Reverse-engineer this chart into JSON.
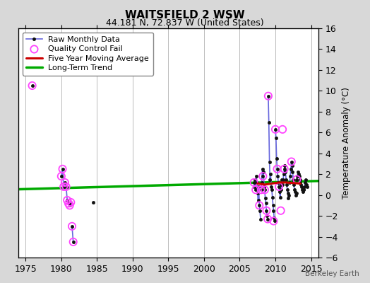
{
  "title": "WAITSFIELD 2 WSW",
  "subtitle": "44.181 N, 72.837 W (United States)",
  "ylabel": "Temperature Anomaly (°C)",
  "watermark": "Berkeley Earth",
  "xlim": [
    1974,
    2016
  ],
  "ylim": [
    -6,
    16
  ],
  "xticks": [
    1975,
    1980,
    1985,
    1990,
    1995,
    2000,
    2005,
    2010,
    2015
  ],
  "yticks": [
    -6,
    -4,
    -2,
    0,
    2,
    4,
    6,
    8,
    10,
    12,
    14,
    16
  ],
  "background_color": "#d8d8d8",
  "plot_bg_color": "#ffffff",
  "grid_color": "#bbbbbb",
  "segments": [
    {
      "x": [
        1975.92
      ],
      "y": [
        10.5
      ]
    },
    {
      "x": [
        1980.0,
        1980.17,
        1980.33
      ],
      "y": [
        1.8,
        2.5,
        0.8
      ]
    },
    {
      "x": [
        1980.5,
        1980.67,
        1980.83,
        1981.0
      ],
      "y": [
        1.2,
        0.8,
        -0.5,
        -0.8
      ]
    },
    {
      "x": [
        1981.17,
        1981.33
      ],
      "y": [
        -1.0,
        -0.7
      ]
    },
    {
      "x": [
        1981.5,
        1981.67
      ],
      "y": [
        -3.0,
        -4.5
      ]
    },
    {
      "x": [
        1984.5
      ],
      "y": [
        -0.7
      ]
    },
    {
      "x": [
        2007.0,
        2007.08,
        2007.17,
        2007.25,
        2007.33,
        2007.42,
        2007.5,
        2007.58,
        2007.67,
        2007.75,
        2007.83,
        2007.92
      ],
      "y": [
        1.2,
        0.8,
        1.5,
        0.5,
        1.8,
        1.2,
        0.2,
        -0.5,
        0.8,
        -1.0,
        -1.5,
        -2.3
      ]
    },
    {
      "x": [
        2008.0,
        2008.08,
        2008.17,
        2008.25,
        2008.33,
        2008.42,
        2008.5,
        2008.58,
        2008.67,
        2008.75,
        2008.83,
        2008.92
      ],
      "y": [
        0.5,
        1.2,
        2.5,
        1.8,
        2.2,
        0.8,
        0.5,
        -0.3,
        -0.8,
        -1.5,
        -2.0,
        -2.3
      ]
    },
    {
      "x": [
        2009.0,
        2009.08,
        2009.17,
        2009.25,
        2009.33,
        2009.42,
        2009.5,
        2009.58,
        2009.67,
        2009.75,
        2009.83,
        2009.92
      ],
      "y": [
        9.5,
        7.0,
        3.2,
        1.5,
        2.0,
        0.8,
        0.5,
        -0.2,
        -1.0,
        -1.5,
        -2.2,
        -2.5
      ]
    },
    {
      "x": [
        2010.0,
        2010.08,
        2010.17,
        2010.25,
        2010.33,
        2010.42,
        2010.5,
        2010.58,
        2010.67,
        2010.75,
        2010.83,
        2010.92
      ],
      "y": [
        6.3,
        5.5,
        3.5,
        2.5,
        1.8,
        1.2,
        0.8,
        0.3,
        -0.2,
        0.5,
        1.0,
        1.5
      ]
    },
    {
      "x": [
        2011.0,
        2011.08,
        2011.17,
        2011.25,
        2011.33,
        2011.42,
        2011.5,
        2011.58,
        2011.67,
        2011.75,
        2011.83,
        2011.92
      ],
      "y": [
        1.0,
        1.5,
        2.0,
        2.5,
        2.8,
        2.2,
        1.5,
        1.0,
        0.5,
        0.2,
        -0.3,
        0.0
      ]
    },
    {
      "x": [
        2012.0,
        2012.08,
        2012.17,
        2012.25,
        2012.33,
        2012.42,
        2012.5,
        2012.58,
        2012.67,
        2012.75,
        2012.83,
        2012.92
      ],
      "y": [
        1.2,
        1.8,
        2.5,
        3.2,
        2.8,
        2.2,
        1.5,
        1.0,
        0.5,
        0.3,
        0.0,
        0.2
      ]
    },
    {
      "x": [
        2013.0,
        2013.08,
        2013.17,
        2013.25,
        2013.33,
        2013.42,
        2013.5,
        2013.58,
        2013.67,
        2013.75,
        2013.83,
        2013.92
      ],
      "y": [
        1.5,
        1.8,
        2.2,
        2.0,
        1.8,
        1.5,
        1.2,
        1.0,
        0.8,
        0.5,
        0.3,
        0.5
      ]
    },
    {
      "x": [
        2014.0,
        2014.08,
        2014.17,
        2014.25,
        2014.33,
        2014.42
      ],
      "y": [
        0.5,
        0.8,
        1.2,
        1.5,
        1.0,
        0.8
      ]
    }
  ],
  "qc_x": [
    1975.92,
    1980.0,
    1980.17,
    1980.33,
    1980.5,
    1980.67,
    1980.83,
    1981.0,
    1981.17,
    1981.33,
    1981.5,
    1981.67,
    2007.0,
    2007.25,
    2007.75,
    2008.0,
    2008.25,
    2008.5,
    2008.75,
    2008.92,
    2009.0,
    2009.75,
    2010.0,
    2010.25,
    2010.5,
    2010.75,
    2011.0,
    2011.25,
    2012.25,
    2013.0
  ],
  "qc_y": [
    10.5,
    1.8,
    2.5,
    0.8,
    1.2,
    0.8,
    -0.5,
    -0.8,
    -1.0,
    -0.7,
    -3.0,
    -4.5,
    1.2,
    0.5,
    -1.0,
    0.5,
    1.8,
    0.5,
    -1.5,
    -2.3,
    9.5,
    -2.5,
    6.3,
    2.5,
    0.8,
    -1.5,
    6.3,
    2.5,
    3.2,
    1.5
  ],
  "moving_avg_x": [
    2007.5,
    2008.5,
    2009.5,
    2010.5,
    2011.5,
    2012.5,
    2013.5
  ],
  "moving_avg_y": [
    1.1,
    1.0,
    1.1,
    1.2,
    1.2,
    1.15,
    1.1
  ],
  "trend_x": [
    1974,
    2016
  ],
  "trend_y": [
    0.55,
    1.35
  ],
  "raw_line_color": "#6666dd",
  "raw_marker_color": "#111111",
  "qc_color": "#ff44ff",
  "moving_avg_color": "#cc0000",
  "trend_color": "#00aa00",
  "legend_labels": [
    "Raw Monthly Data",
    "Quality Control Fail",
    "Five Year Moving Average",
    "Long-Term Trend"
  ]
}
